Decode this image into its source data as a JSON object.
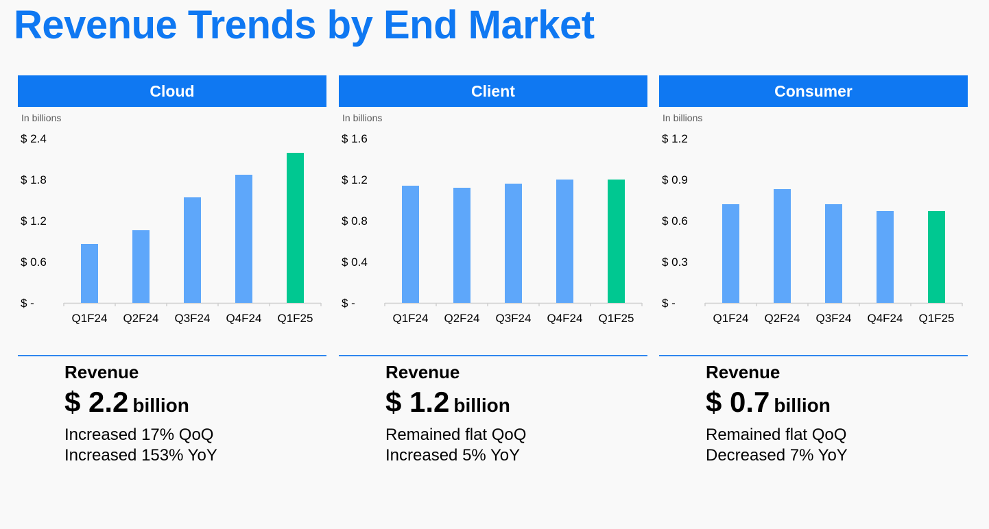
{
  "title": "Revenue Trends by End Market",
  "colors": {
    "accent": "#0f78f2",
    "bar": "#5ea7fa",
    "bar_highlight": "#00c891",
    "divider": "#2f86ef"
  },
  "panels": [
    {
      "header": "Cloud",
      "unit_label": "In billions",
      "revenue_label": "Revenue",
      "revenue_amount": "$ 2.2",
      "revenue_unit": "billion",
      "notes": [
        "Increased 17% QoQ",
        "Increased 153% YoY"
      ]
    },
    {
      "header": "Client",
      "unit_label": "In billions",
      "revenue_label": "Revenue",
      "revenue_amount": "$ 1.2",
      "revenue_unit": "billion",
      "notes": [
        "Remained flat QoQ",
        "Increased 5% YoY"
      ]
    },
    {
      "header": "Consumer",
      "unit_label": "In billions",
      "revenue_label": "Revenue",
      "revenue_amount": "$ 0.7",
      "revenue_unit": "billion",
      "notes": [
        "Remained flat QoQ",
        "Decreased 7% YoY"
      ]
    }
  ],
  "chart_data": [
    {
      "type": "bar",
      "title": "Cloud",
      "categories": [
        "Q1F24",
        "Q2F24",
        "Q3F24",
        "Q4F24",
        "Q1F25"
      ],
      "values": [
        0.86,
        1.06,
        1.54,
        1.87,
        2.19
      ],
      "ylim": [
        0,
        2.4
      ],
      "yticks": [
        0,
        0.6,
        1.2,
        1.8,
        2.4
      ],
      "ytick_labels": [
        "$ -",
        "$ 0.6",
        "$ 1.2",
        "$ 1.8",
        "$ 2.4"
      ],
      "highlight_index": 4,
      "grid": false
    },
    {
      "type": "bar",
      "title": "Client",
      "categories": [
        "Q1F24",
        "Q2F24",
        "Q3F24",
        "Q4F24",
        "Q1F25"
      ],
      "values": [
        1.14,
        1.12,
        1.16,
        1.2,
        1.2
      ],
      "ylim": [
        0,
        1.6
      ],
      "yticks": [
        0,
        0.4,
        0.8,
        1.2,
        1.6
      ],
      "ytick_labels": [
        "$ -",
        "$ 0.4",
        "$ 0.8",
        "$ 1.2",
        "$ 1.6"
      ],
      "highlight_index": 4,
      "grid": false
    },
    {
      "type": "bar",
      "title": "Consumer",
      "categories": [
        "Q1F24",
        "Q2F24",
        "Q3F24",
        "Q4F24",
        "Q1F25"
      ],
      "values": [
        0.72,
        0.83,
        0.72,
        0.67,
        0.67
      ],
      "ylim": [
        0,
        1.2
      ],
      "yticks": [
        0,
        0.3,
        0.6,
        0.9,
        1.2
      ],
      "ytick_labels": [
        "$ -",
        "$ 0.3",
        "$ 0.6",
        "$ 0.9",
        "$ 1.2"
      ],
      "highlight_index": 4,
      "grid": false
    }
  ]
}
